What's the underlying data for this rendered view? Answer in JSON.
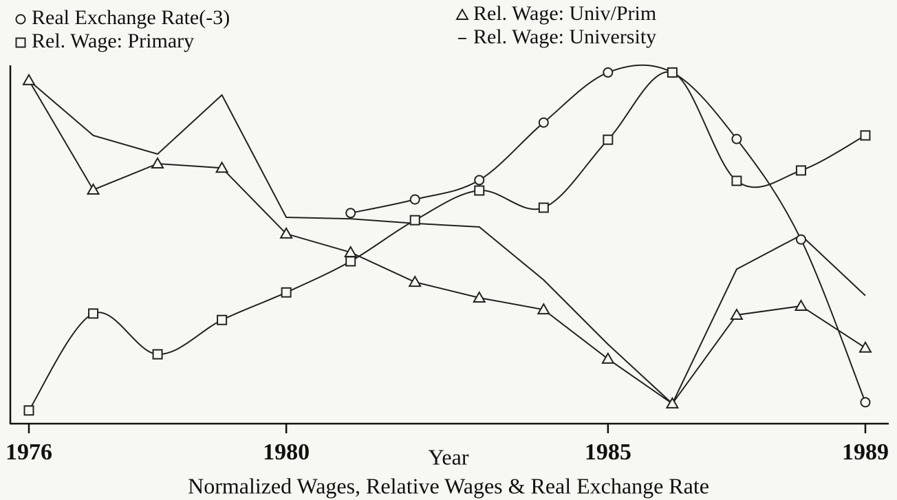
{
  "chart_data": {
    "type": "line",
    "title": "Normalized Wages, Relative Wages & Real Exchange Rate",
    "x_label": "Year",
    "x": [
      1976,
      1977,
      1978,
      1979,
      1980,
      1981,
      1982,
      1983,
      1984,
      1985,
      1986,
      1987,
      1988,
      1989
    ],
    "xlim": [
      1976,
      1989
    ],
    "xticks": [
      1976,
      1980,
      1985,
      1989
    ],
    "ylim": [
      0,
      100
    ],
    "series": [
      {
        "name": "Real Exchange Rate(-3)",
        "color": "#222222",
        "marker": "circle",
        "smooth": true,
        "values": [
          null,
          null,
          null,
          null,
          null,
          58.7,
          62.5,
          67.9,
          84,
          98,
          98,
          79.4,
          51.3,
          5.8
        ]
      },
      {
        "name": "Rel. Wage: Primary",
        "color": "#222222",
        "marker": "square",
        "smooth": true,
        "values": [
          3.5,
          30.6,
          19.2,
          28.8,
          36.5,
          45.2,
          56.7,
          65,
          60.2,
          79.2,
          98,
          67.7,
          70.6,
          80.4
        ]
      },
      {
        "name": "Rel. Wage: Univ/Prim",
        "color": "#222222",
        "marker": "triangle",
        "smooth": false,
        "values": [
          95.8,
          65.2,
          72.5,
          71.3,
          52.9,
          47.7,
          39.4,
          35,
          31.7,
          17.9,
          5.4,
          30.2,
          32.7,
          21
        ]
      },
      {
        "name": "Rel. Wage: University",
        "color": "#222222",
        "marker": "none",
        "smooth": false,
        "values": [
          95.8,
          80.4,
          75.2,
          91.7,
          57.5,
          57.1,
          55.8,
          54.8,
          40,
          22,
          5.4,
          43,
          52.5,
          35.6
        ]
      }
    ]
  }
}
